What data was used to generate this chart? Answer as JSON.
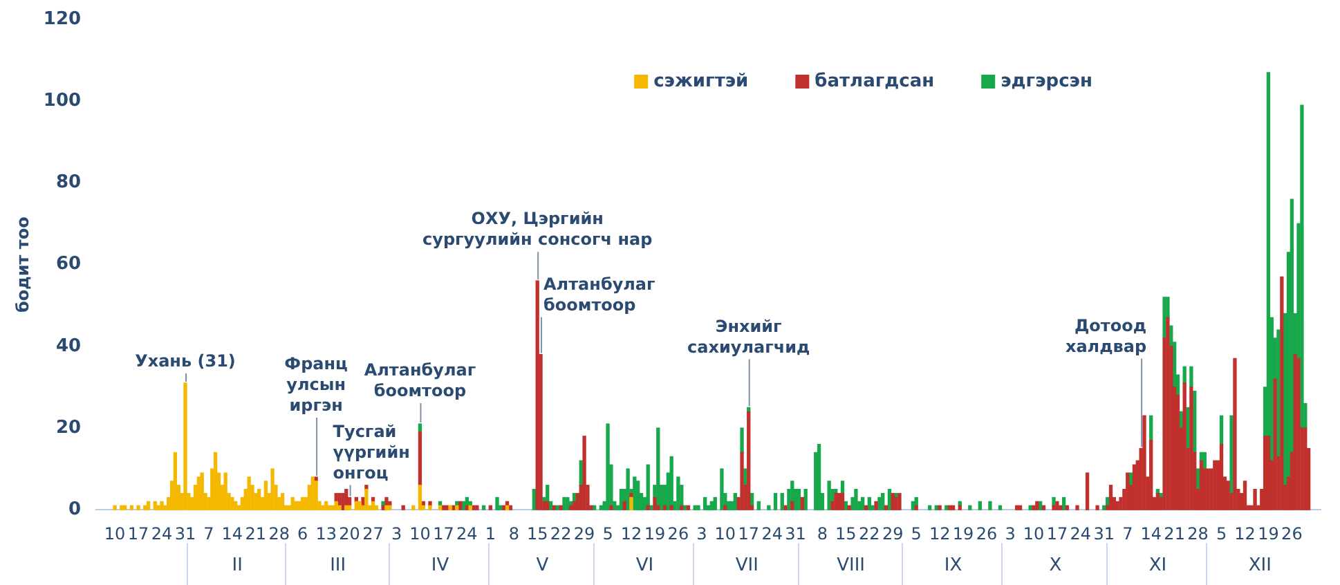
{
  "chart_data": {
    "type": "bar",
    "stacked": true,
    "ylabel": "бодит тоо",
    "legend": "top right",
    "ylim": [
      0,
      120
    ],
    "yticks": [
      0,
      20,
      40,
      60,
      80,
      100,
      120
    ],
    "xlim": [
      "--01-08",
      "--12-31"
    ],
    "xticks": [
      {
        "value": "--01-10",
        "label": "10"
      },
      {
        "value": "--01-17",
        "label": "17"
      },
      {
        "value": "--01-24",
        "label": "24"
      },
      {
        "value": "--01-31",
        "label": "31"
      },
      {
        "value": "--02-07",
        "label": "7"
      },
      {
        "value": "--02-14",
        "label": "14"
      },
      {
        "value": "--02-21",
        "label": "21"
      },
      {
        "value": "--02-28",
        "label": "28"
      },
      {
        "value": "--03-06",
        "label": "6"
      },
      {
        "value": "--03-13",
        "label": "13"
      },
      {
        "value": "--03-20",
        "label": "20"
      },
      {
        "value": "--03-27",
        "label": "27"
      },
      {
        "value": "--04-03",
        "label": "3"
      },
      {
        "value": "--04-10",
        "label": "10"
      },
      {
        "value": "--04-17",
        "label": "17"
      },
      {
        "value": "--04-24",
        "label": "24"
      },
      {
        "value": "--05-01",
        "label": "1"
      },
      {
        "value": "--05-08",
        "label": "8"
      },
      {
        "value": "--05-15",
        "label": "15"
      },
      {
        "value": "--05-22",
        "label": "22"
      },
      {
        "value": "--05-29",
        "label": "29"
      },
      {
        "value": "--06-05",
        "label": "5"
      },
      {
        "value": "--06-12",
        "label": "12"
      },
      {
        "value": "--06-19",
        "label": "19"
      },
      {
        "value": "--06-26",
        "label": "26"
      },
      {
        "value": "--07-03",
        "label": "3"
      },
      {
        "value": "--07-10",
        "label": "10"
      },
      {
        "value": "--07-17",
        "label": "17"
      },
      {
        "value": "--07-24",
        "label": "24"
      },
      {
        "value": "--07-31",
        "label": "31"
      },
      {
        "value": "--08-08",
        "label": "8"
      },
      {
        "value": "--08-15",
        "label": "15"
      },
      {
        "value": "--08-22",
        "label": "22"
      },
      {
        "value": "--08-29",
        "label": "29"
      },
      {
        "value": "--09-05",
        "label": "5"
      },
      {
        "value": "--09-12",
        "label": "12"
      },
      {
        "value": "--09-19",
        "label": "19"
      },
      {
        "value": "--09-26",
        "label": "26"
      },
      {
        "value": "--10-03",
        "label": "3"
      },
      {
        "value": "--10-10",
        "label": "10"
      },
      {
        "value": "--10-17",
        "label": "17"
      },
      {
        "value": "--10-24",
        "label": "24"
      },
      {
        "value": "--10-31",
        "label": "31"
      },
      {
        "value": "--11-07",
        "label": "7"
      },
      {
        "value": "--11-14",
        "label": "14"
      },
      {
        "value": "--11-21",
        "label": "21"
      },
      {
        "value": "--11-28",
        "label": "28"
      },
      {
        "value": "--12-05",
        "label": "5"
      },
      {
        "value": "--12-12",
        "label": "12"
      },
      {
        "value": "--12-19",
        "label": "19"
      },
      {
        "value": "--12-26",
        "label": "26"
      }
    ],
    "annotations": [
      {
        "text": "Ухань (31)",
        "x": "--01-31",
        "y": 31
      },
      {
        "text": "Франц улсын иргэн",
        "x": "--03-10",
        "y": 8
      },
      {
        "text": "Тусгай үүргийн онгоц",
        "x": "--03-20",
        "y": 3
      },
      {
        "text": "Алтанбулаг боомтоор",
        "x": "--04-10",
        "y": 21
      },
      {
        "text": "ОХУ, Цэргийн сургуулийн сонсогч нар",
        "x": "--05-15",
        "y": 56
      },
      {
        "text": "Алтанбулаг боомтоор",
        "x": "--05-16",
        "y": 38
      },
      {
        "text": "Энхийг сахиулагчид",
        "x": "--07-17",
        "y": 25
      },
      {
        "text": "Дотоод халдвар",
        "x": "--11-11",
        "y": 15
      },
      "II",
      "III",
      "IV",
      "V",
      "VI",
      "VII",
      "VIII",
      "IX",
      "X",
      "XI",
      "XII"
    ],
    "x": [
      "--01-10",
      "--01-11",
      "--01-12",
      "--01-13",
      "--01-14",
      "--01-15",
      "--01-16",
      "--01-17",
      "--01-18",
      "--01-19",
      "--01-20",
      "--01-21",
      "--01-22",
      "--01-23",
      "--01-24",
      "--01-25",
      "--01-26",
      "--01-27",
      "--01-28",
      "--01-29",
      "--01-30",
      "--01-31",
      "--02-01",
      "--02-02",
      "--02-03",
      "--02-04",
      "--02-05",
      "--02-06",
      "--02-07",
      "--02-08",
      "--02-09",
      "--02-10",
      "--02-11",
      "--02-12",
      "--02-13",
      "--02-14",
      "--02-15",
      "--02-16",
      "--02-17",
      "--02-18",
      "--02-19",
      "--02-20",
      "--02-21",
      "--02-22",
      "--02-23",
      "--02-24",
      "--02-25",
      "--02-26",
      "--02-27",
      "--02-28",
      "--02-29",
      "--03-01",
      "--03-02",
      "--03-03",
      "--03-04",
      "--03-05",
      "--03-06",
      "--03-07",
      "--03-08",
      "--03-09",
      "--03-10",
      "--03-11",
      "--03-12",
      "--03-13",
      "--03-14",
      "--03-15",
      "--03-16",
      "--03-17",
      "--03-18",
      "--03-19",
      "--03-20",
      "--03-21",
      "--03-22",
      "--03-23",
      "--03-24",
      "--03-25",
      "--03-26",
      "--03-27",
      "--03-28",
      "--03-29",
      "--03-30",
      "--03-31",
      "--04-01",
      "--04-02",
      "--04-03",
      "--04-04",
      "--04-05",
      "--04-06",
      "--04-07",
      "--04-08",
      "--04-09",
      "--04-10",
      "--04-11",
      "--04-12",
      "--04-13",
      "--04-14",
      "--04-15",
      "--04-16",
      "--04-17",
      "--04-18",
      "--04-19",
      "--04-20",
      "--04-21",
      "--04-22",
      "--04-23",
      "--04-24",
      "--04-25",
      "--04-26",
      "--04-27",
      "--04-28",
      "--04-29",
      "--04-30",
      "--05-01",
      "--05-02",
      "--05-03",
      "--05-04",
      "--05-05",
      "--05-06",
      "--05-07",
      "--05-08",
      "--05-09",
      "--05-10",
      "--05-11",
      "--05-12",
      "--05-13",
      "--05-14",
      "--05-15",
      "--05-16",
      "--05-17",
      "--05-18",
      "--05-19",
      "--05-20",
      "--05-21",
      "--05-22",
      "--05-23",
      "--05-24",
      "--05-25",
      "--05-26",
      "--05-27",
      "--05-28",
      "--05-29",
      "--05-30",
      "--05-31",
      "--06-01",
      "--06-02",
      "--06-03",
      "--06-04",
      "--06-05",
      "--06-06",
      "--06-07",
      "--06-08",
      "--06-09",
      "--06-10",
      "--06-11",
      "--06-12",
      "--06-13",
      "--06-14",
      "--06-15",
      "--06-16",
      "--06-17",
      "--06-18",
      "--06-19",
      "--06-20",
      "--06-21",
      "--06-22",
      "--06-23",
      "--06-24",
      "--06-25",
      "--06-26",
      "--06-27",
      "--06-28",
      "--06-29",
      "--06-30",
      "--07-01",
      "--07-02",
      "--07-03",
      "--07-04",
      "--07-05",
      "--07-06",
      "--07-07",
      "--07-08",
      "--07-09",
      "--07-10",
      "--07-11",
      "--07-12",
      "--07-13",
      "--07-14",
      "--07-15",
      "--07-16",
      "--07-17",
      "--07-18",
      "--07-19",
      "--07-20",
      "--07-21",
      "--07-22",
      "--07-23",
      "--07-24",
      "--07-25",
      "--07-26",
      "--07-27",
      "--07-28",
      "--07-29",
      "--07-30",
      "--07-31",
      "--08-01",
      "--08-02",
      "--08-03",
      "--08-04",
      "--08-05",
      "--08-06",
      "--08-07",
      "--08-08",
      "--08-09",
      "--08-10",
      "--08-11",
      "--08-12",
      "--08-13",
      "--08-14",
      "--08-15",
      "--08-16",
      "--08-17",
      "--08-18",
      "--08-19",
      "--08-20",
      "--08-21",
      "--08-22",
      "--08-23",
      "--08-24",
      "--08-25",
      "--08-26",
      "--08-27",
      "--08-28",
      "--08-29",
      "--08-30",
      "--08-31",
      "--09-01",
      "--09-02",
      "--09-03",
      "--09-04",
      "--09-05",
      "--09-06",
      "--09-07",
      "--09-08",
      "--09-09",
      "--09-10",
      "--09-11",
      "--09-12",
      "--09-13",
      "--09-14",
      "--09-15",
      "--09-16",
      "--09-17",
      "--09-18",
      "--09-19",
      "--09-20",
      "--09-21",
      "--09-22",
      "--09-23",
      "--09-24",
      "--09-25",
      "--09-26",
      "--09-27",
      "--09-28",
      "--09-29",
      "--09-30",
      "--10-01",
      "--10-02",
      "--10-03",
      "--10-04",
      "--10-05",
      "--10-06",
      "--10-07",
      "--10-08",
      "--10-09",
      "--10-10",
      "--10-11",
      "--10-12",
      "--10-13",
      "--10-14",
      "--10-15",
      "--10-16",
      "--10-17",
      "--10-18",
      "--10-19",
      "--10-20",
      "--10-21",
      "--10-22",
      "--10-23",
      "--10-24",
      "--10-25",
      "--10-26",
      "--10-27",
      "--10-28",
      "--10-29",
      "--10-30",
      "--10-31",
      "--11-01",
      "--11-02",
      "--11-03",
      "--11-04",
      "--11-05",
      "--11-06",
      "--11-07",
      "--11-08",
      "--11-09",
      "--11-10",
      "--11-11",
      "--11-12",
      "--11-13",
      "--11-14",
      "--11-15",
      "--11-16",
      "--11-17",
      "--11-18",
      "--11-19",
      "--11-20",
      "--11-21",
      "--11-22",
      "--11-23",
      "--11-24",
      "--11-25",
      "--11-26",
      "--11-27",
      "--11-28",
      "--11-29",
      "--11-30",
      "--12-01",
      "--12-02",
      "--12-03",
      "--12-04",
      "--12-05",
      "--12-06",
      "--12-07",
      "--12-08",
      "--12-09",
      "--12-10",
      "--12-11",
      "--12-12",
      "--12-13",
      "--12-14",
      "--12-15",
      "--12-16",
      "--12-17",
      "--12-18",
      "--12-19",
      "--12-20",
      "--12-21",
      "--12-22",
      "--12-23",
      "--12-24",
      "--12-25",
      "--12-26",
      "--12-27",
      "--12-28",
      "--12-29",
      "--12-30",
      "--12-31"
    ],
    "series": [
      {
        "name": "сэжигтэй",
        "color": "#f5b800",
        "values": [
          1,
          null,
          1,
          1,
          null,
          1,
          null,
          1,
          null,
          1,
          2,
          null,
          2,
          1,
          2,
          1,
          3,
          7,
          14,
          6,
          4,
          31,
          4,
          3,
          6,
          8,
          9,
          4,
          3,
          10,
          14,
          9,
          6,
          9,
          4,
          3,
          2,
          1,
          3,
          5,
          8,
          6,
          4,
          5,
          3,
          7,
          4,
          10,
          6,
          3,
          4,
          1,
          1,
          3,
          2,
          2,
          3,
          3,
          6,
          8,
          7,
          2,
          1,
          2,
          1,
          1,
          2,
          1,
          null,
          1,
          1,
          null,
          2,
          2,
          1,
          5,
          1,
          2,
          1,
          null,
          null,
          1,
          1,
          null,
          null,
          null,
          null,
          null,
          null,
          1,
          null,
          6,
          1,
          null,
          1,
          null,
          null,
          1,
          null,
          null,
          1,
          null,
          1,
          null,
          null,
          null,
          1,
          null,
          null,
          null,
          null,
          null,
          null,
          null,
          null,
          null,
          null,
          1,
          null,
          null,
          null,
          null,
          null,
          null,
          null,
          null,
          null,
          null,
          null,
          null,
          null,
          null,
          null,
          null,
          null,
          null,
          null,
          null,
          null,
          null,
          null,
          null,
          null,
          null,
          null,
          null,
          null,
          null,
          null,
          null,
          null,
          null,
          null,
          null,
          3,
          null,
          null,
          null,
          null,
          null,
          null,
          null,
          null,
          null,
          null,
          null,
          null,
          null,
          null,
          null,
          null,
          null,
          null,
          null,
          null,
          null,
          null,
          null,
          null,
          null,
          null,
          null,
          null,
          null,
          null,
          null,
          null,
          null,
          null,
          null,
          null,
          null,
          null,
          null,
          null,
          null,
          null,
          null,
          null,
          null,
          null,
          null,
          null,
          null,
          null,
          null,
          null,
          null,
          null,
          null,
          null,
          null,
          null,
          null,
          null,
          null,
          null,
          null,
          null,
          null,
          null,
          null,
          null,
          null,
          null,
          null,
          null,
          null,
          null,
          null,
          null,
          null,
          null,
          null,
          null,
          null,
          null,
          null,
          null,
          null,
          null,
          null,
          null,
          null,
          null,
          null,
          null,
          null,
          null,
          null,
          null,
          null,
          null,
          null,
          null,
          null,
          null,
          null,
          null,
          null,
          null,
          null,
          null,
          null,
          null,
          null,
          null,
          null,
          null,
          null,
          null,
          null,
          null,
          null,
          null,
          null,
          null,
          null,
          null,
          null,
          null,
          null,
          null,
          null,
          null,
          null,
          null,
          null,
          null,
          null,
          null,
          null,
          null,
          null,
          null,
          null,
          null,
          null,
          null,
          null,
          null,
          null,
          null,
          null,
          null,
          null,
          null,
          null,
          null,
          null,
          null,
          null,
          null,
          null,
          null,
          null,
          null,
          null,
          null,
          null,
          null,
          null,
          null,
          null,
          null,
          null,
          null,
          null,
          null,
          null,
          null,
          null,
          null,
          null,
          null,
          null,
          null,
          null,
          null,
          null,
          null,
          null,
          null,
          null,
          null,
          null,
          null,
          null,
          null,
          null,
          null,
          null,
          null,
          null,
          null,
          null,
          null
        ]
      },
      {
        "name": "батлагдсан",
        "color": "#c0302c",
        "values": [
          null,
          null,
          null,
          null,
          null,
          null,
          null,
          null,
          null,
          null,
          null,
          null,
          null,
          null,
          null,
          null,
          null,
          null,
          null,
          null,
          null,
          null,
          null,
          null,
          null,
          null,
          null,
          null,
          null,
          null,
          null,
          null,
          null,
          null,
          null,
          null,
          null,
          null,
          null,
          null,
          null,
          null,
          null,
          null,
          null,
          null,
          null,
          null,
          null,
          null,
          null,
          null,
          null,
          null,
          null,
          null,
          null,
          null,
          null,
          null,
          1,
          null,
          null,
          null,
          null,
          null,
          2,
          3,
          4,
          4,
          2,
          null,
          1,
          null,
          2,
          1,
          null,
          1,
          null,
          null,
          1,
          2,
          1,
          null,
          null,
          null,
          1,
          null,
          null,
          null,
          null,
          13,
          1,
          null,
          1,
          null,
          null,
          null,
          1,
          1,
          null,
          1,
          null,
          2,
          null,
          1,
          null,
          1,
          1,
          null,
          null,
          null,
          1,
          null,
          null,
          null,
          1,
          1,
          1,
          null,
          null,
          null,
          null,
          null,
          null,
          null,
          56,
          38,
          2,
          2,
          null,
          1,
          null,
          1,
          null,
          null,
          1,
          2,
          4,
          6,
          18,
          6,
          1,
          null,
          null,
          null,
          null,
          null,
          1,
          null,
          null,
          null,
          2,
          null,
          1,
          null,
          null,
          null,
          null,
          1,
          null,
          3,
          1,
          null,
          1,
          null,
          1,
          null,
          null,
          1,
          null,
          1,
          null,
          null,
          null,
          null,
          null,
          null,
          null,
          null,
          null,
          null,
          1,
          null,
          null,
          null,
          3,
          14,
          6,
          24,
          1,
          null,
          null,
          null,
          null,
          null,
          null,
          null,
          null,
          null,
          1,
          null,
          2,
          null,
          null,
          3,
          null,
          null,
          null,
          null,
          null,
          null,
          null,
          null,
          2,
          4,
          4,
          4,
          null,
          1,
          null,
          null,
          null,
          null,
          1,
          null,
          null,
          2,
          null,
          null,
          1,
          null,
          4,
          3,
          4,
          null,
          null,
          null,
          null,
          1,
          null,
          null,
          null,
          null,
          null,
          null,
          1,
          null,
          null,
          1,
          1,
          null,
          1,
          null,
          null,
          null,
          null,
          null,
          null,
          null,
          null,
          null,
          null,
          null,
          null,
          null,
          null,
          null,
          null,
          1,
          1,
          null,
          null,
          null,
          1,
          2,
          null,
          1,
          null,
          null,
          1,
          2,
          1,
          null,
          1,
          null,
          null,
          1,
          null,
          null,
          9,
          null,
          null,
          1,
          null,
          null,
          1,
          6,
          3,
          2,
          3,
          5,
          9,
          6,
          11,
          12,
          15,
          23,
          8,
          17,
          3,
          4,
          3,
          42,
          47,
          40,
          30,
          28,
          20,
          31,
          15,
          30,
          14,
          5,
          12,
          10,
          10,
          10,
          12,
          12,
          16,
          8,
          7,
          4,
          37,
          5,
          4,
          7,
          1,
          1,
          5,
          1,
          5,
          18,
          18,
          12,
          32,
          13,
          57,
          6,
          8,
          14,
          38,
          37,
          20,
          20,
          15
        ]
      },
      {
        "name": "эдгэрсэн",
        "color": "#16a84a",
        "values": [
          null,
          null,
          null,
          null,
          null,
          null,
          null,
          null,
          null,
          null,
          null,
          null,
          null,
          null,
          null,
          null,
          null,
          null,
          null,
          null,
          null,
          null,
          null,
          null,
          null,
          null,
          null,
          null,
          null,
          null,
          null,
          null,
          null,
          null,
          null,
          null,
          null,
          null,
          null,
          null,
          null,
          null,
          null,
          null,
          null,
          null,
          null,
          null,
          null,
          null,
          null,
          null,
          null,
          null,
          null,
          null,
          null,
          null,
          null,
          null,
          null,
          null,
          null,
          null,
          null,
          null,
          null,
          null,
          null,
          null,
          null,
          null,
          null,
          null,
          null,
          null,
          null,
          null,
          null,
          null,
          1,
          null,
          null,
          null,
          null,
          null,
          null,
          null,
          null,
          null,
          null,
          2,
          null,
          null,
          null,
          null,
          null,
          1,
          null,
          null,
          null,
          null,
          1,
          null,
          2,
          2,
          1,
          null,
          null,
          null,
          1,
          null,
          null,
          null,
          3,
          1,
          null,
          null,
          null,
          null,
          null,
          null,
          null,
          null,
          null,
          5,
          null,
          null,
          1,
          4,
          2,
          null,
          1,
          null,
          3,
          3,
          1,
          2,
          null,
          6,
          null,
          null,
          null,
          1,
          null,
          1,
          2,
          21,
          10,
          2,
          1,
          5,
          3,
          10,
          1,
          8,
          7,
          4,
          3,
          10,
          1,
          3,
          19,
          6,
          5,
          9,
          12,
          2,
          8,
          5,
          1,
          null,
          null,
          1,
          1,
          null,
          3,
          1,
          2,
          3,
          null,
          10,
          3,
          2,
          2,
          4,
          null,
          6,
          4,
          1,
          3,
          null,
          2,
          null,
          null,
          1,
          null,
          4,
          null,
          4,
          null,
          5,
          5,
          5,
          5,
          null,
          5,
          null,
          null,
          14,
          16,
          4,
          null,
          7,
          3,
          1,
          null,
          3,
          2,
          null,
          3,
          5,
          2,
          3,
          null,
          3,
          1,
          null,
          3,
          4,
          null,
          5,
          null,
          1,
          null,
          null,
          null,
          null,
          2,
          2,
          null,
          null,
          null,
          1,
          null,
          1,
          null,
          null,
          1,
          null,
          null,
          null,
          1,
          null,
          null,
          1,
          null,
          null,
          2,
          null,
          null,
          2,
          null,
          null,
          1,
          null,
          null,
          null,
          null,
          null,
          null,
          null,
          null,
          1,
          null,
          null,
          2,
          null,
          null,
          null,
          2,
          null,
          null,
          3,
          null,
          null,
          null,
          null,
          null,
          null,
          null,
          null,
          null,
          null,
          null,
          1,
          2,
          null,
          null,
          null,
          null,
          null,
          null,
          3,
          null,
          null,
          null,
          null,
          null,
          6,
          null,
          1,
          1,
          10,
          5,
          5,
          11,
          5,
          4,
          4,
          10,
          5,
          15,
          5,
          2,
          4,
          null,
          null,
          null,
          null,
          7,
          null,
          null,
          19,
          null,
          null,
          null,
          null,
          null,
          null,
          null,
          null,
          null,
          12,
          89,
          35,
          10,
          31,
          null,
          42,
          55,
          62,
          10,
          33,
          79,
          6,
          null
        ]
      }
    ]
  }
}
